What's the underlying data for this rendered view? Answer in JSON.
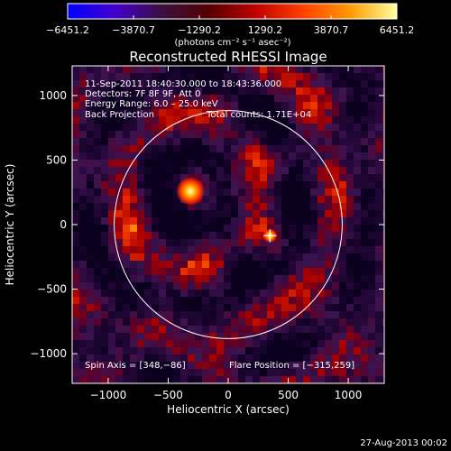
{
  "chart_data": {
    "type": "heatmap",
    "title": "Reconstructed RHESSI Image",
    "xlabel": "Heliocentric X (arcsec)",
    "ylabel": "Heliocentric Y (arcsec)",
    "xlim": [
      -1300,
      1300
    ],
    "ylim": [
      -1230,
      1230
    ],
    "x_ticks": [
      -1000,
      -500,
      0,
      500,
      1000
    ],
    "y_ticks": [
      1000,
      500,
      0,
      -500,
      -1000
    ],
    "colorbar": {
      "range": [
        -6451.2,
        6451.2
      ],
      "tick_values": [
        -6451.2,
        -3870.7,
        -1290.2,
        1290.2,
        3870.7,
        6451.2
      ],
      "tick_labels": [
        "−6451.2",
        "−3870.7",
        "−1290.2",
        "1290.2",
        "3870.7",
        "6451.2"
      ],
      "units_text": "(photons cm⁻² s⁻¹ asec⁻²)",
      "colors": [
        "#0000ff",
        "#4400cc",
        "#3a1040",
        "#550000",
        "#c00000",
        "#ff4000",
        "#ff9900",
        "#ffffa0"
      ]
    },
    "annotations": {
      "time_range": "11-Sep-2011 18:40:30.000 to 18:43:36.000",
      "detectors": "Detectors: 7F 8F 9F, Att 0",
      "energy": "Energy Range: 6.0 – 25.0 keV",
      "method": "Back Projection",
      "counts": "Total counts: 1.71E+04",
      "spin_axis": "Spin Axis = [348,−86]",
      "flare_position": "Flare Position = [−315,259]"
    },
    "solar_limb": {
      "center": [
        0,
        0
      ],
      "radius": 950
    },
    "spin_axis_point": [
      348,
      -86
    ],
    "flare_position_point": [
      -315,
      259
    ],
    "sources": [
      {
        "x": -315,
        "y": 259,
        "level": 1.0
      },
      {
        "x": 348,
        "y": -86,
        "level": 0.6
      }
    ],
    "grid": false
  },
  "footer": {
    "date": "27-Aug-2013 00:02"
  }
}
